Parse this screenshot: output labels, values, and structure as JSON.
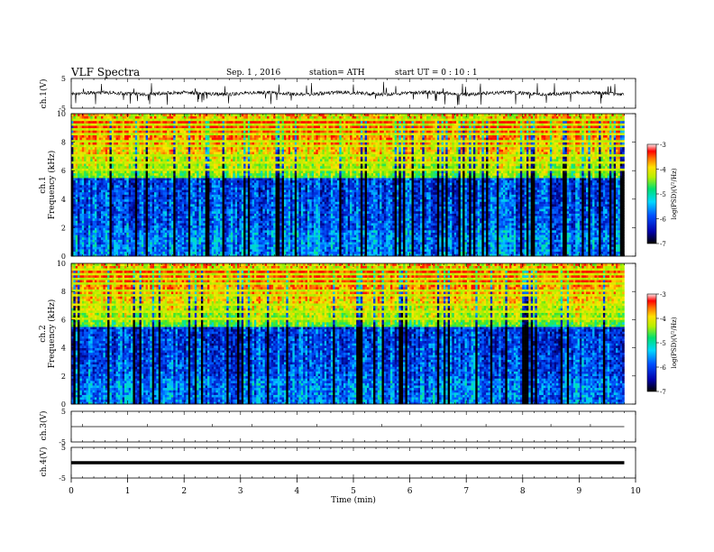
{
  "header": {
    "title": "VLF  Spectra",
    "date": "Sep. 1  , 2016",
    "station": "station= ATH",
    "start": "start  UT  =   0  : 10 : 1"
  },
  "chart_data": [
    {
      "type": "line",
      "id": "ch1-waveform",
      "ylabel": "ch.1(V)",
      "ylim": [
        -5,
        5
      ],
      "yticks": [
        "5",
        "-5"
      ],
      "description_values": "continuous noisy waveform around 0 V with frequent spikes reaching about ±4 V"
    },
    {
      "type": "heatmap",
      "id": "ch1-spectrogram",
      "ylabel": "ch.1\nFrequency  (kHz)",
      "ylim": [
        0,
        10
      ],
      "yticks": [
        "0",
        "2",
        "4",
        "6",
        "8",
        "10"
      ],
      "xlim": [
        0,
        10
      ],
      "z_range": [
        -7,
        -3
      ],
      "colorbar": {
        "label": "log(PSD)(V²/Hz)",
        "ticks": [
          "-3",
          "-4",
          "-5",
          "-6",
          "-7"
        ]
      },
      "data_extent_min": 9.8
    },
    {
      "type": "heatmap",
      "id": "ch2-spectrogram",
      "ylabel": "ch.2\nFrequency  (kHz)",
      "ylim": [
        0,
        10
      ],
      "yticks": [
        "0",
        "2",
        "4",
        "6",
        "8",
        "10"
      ],
      "xlim": [
        0,
        10
      ],
      "z_range": [
        -7,
        -3
      ],
      "colorbar": {
        "label": "log(PSD)(V²/Hz)",
        "ticks": [
          "-3",
          "-4",
          "-5",
          "-6",
          "-7"
        ]
      },
      "data_extent_min": 9.8
    },
    {
      "type": "line",
      "id": "ch3-waveform",
      "ylabel": "ch.3(V)",
      "ylim": [
        -5,
        5
      ],
      "yticks": [
        "5",
        "-5"
      ],
      "values_const": 0
    },
    {
      "type": "line",
      "id": "ch4-waveform",
      "ylabel": "ch.4(V)",
      "ylim": [
        -5,
        5
      ],
      "yticks": [
        "5",
        "-5"
      ],
      "values_const": 0
    }
  ],
  "x_axis": {
    "label": "Time  (min)",
    "ticks": [
      "0",
      "1",
      "2",
      "3",
      "4",
      "5",
      "6",
      "7",
      "8",
      "9",
      "10"
    ],
    "range": [
      0,
      10
    ]
  }
}
